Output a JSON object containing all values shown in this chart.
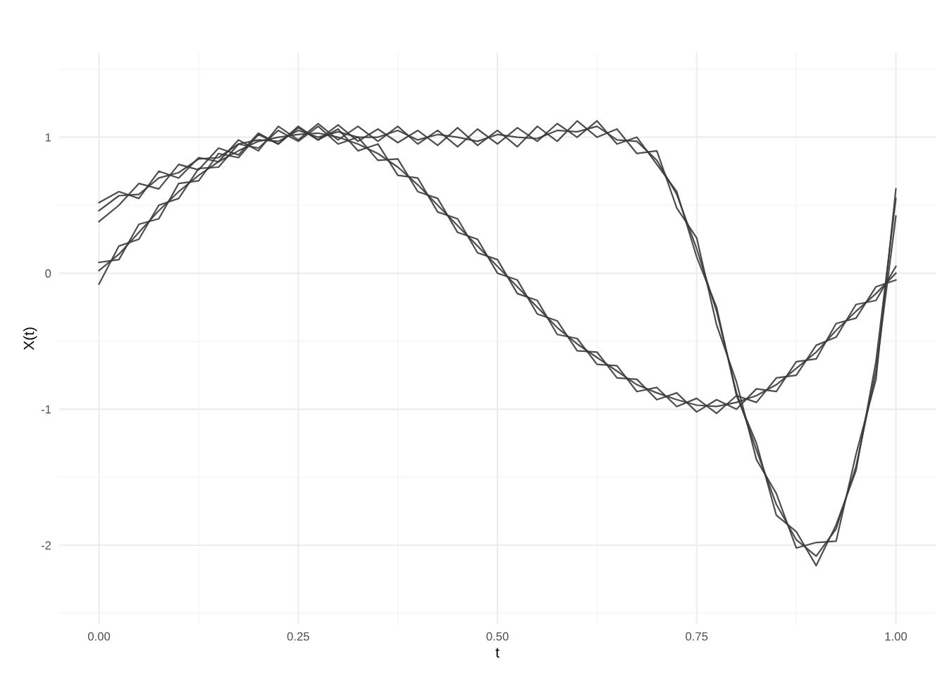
{
  "chart_data": {
    "type": "line",
    "xlabel": "t",
    "ylabel": "X(t)",
    "x": [
      0,
      0.025,
      0.05,
      0.075,
      0.1,
      0.125,
      0.15,
      0.175,
      0.2,
      0.225,
      0.25,
      0.275,
      0.3,
      0.325,
      0.35,
      0.375,
      0.4,
      0.425,
      0.45,
      0.475,
      0.5,
      0.525,
      0.55,
      0.575,
      0.6,
      0.625,
      0.65,
      0.675,
      0.7,
      0.725,
      0.75,
      0.775,
      0.8,
      0.825,
      0.85,
      0.875,
      0.9,
      0.925,
      0.95,
      0.975,
      1
    ],
    "series": [
      {
        "color": "#3a3a3a",
        "values": [
          0.52,
          0.6,
          0.55,
          0.75,
          0.7,
          0.85,
          0.82,
          0.98,
          0.9,
          1.08,
          0.98,
          1.1,
          0.98,
          1.08,
          0.97,
          1.08,
          0.95,
          1.05,
          0.93,
          1.06,
          0.95,
          1.07,
          0.97,
          1.1,
          1.0,
          1.12,
          0.95,
          1.0,
          0.8,
          0.6,
          0.12,
          -0.25,
          -0.9,
          -1.25,
          -1.78,
          -1.9,
          -2.15,
          -1.85,
          -1.45,
          -0.65,
          0.55
        ]
      },
      {
        "color": "#3a3a3a",
        "values": [
          0.38,
          0.5,
          0.66,
          0.62,
          0.8,
          0.76,
          0.92,
          0.87,
          1.03,
          0.95,
          1.07,
          0.98,
          1.09,
          0.97,
          1.06,
          0.96,
          1.05,
          0.94,
          1.07,
          0.94,
          1.05,
          0.93,
          1.08,
          0.97,
          1.12,
          1.0,
          1.06,
          0.88,
          0.9,
          0.48,
          0.26,
          -0.38,
          -0.8,
          -1.37,
          -1.62,
          -2.02,
          -1.98,
          -1.97,
          -1.33,
          -0.78,
          0.62
        ]
      },
      {
        "color": "#3a3a3a",
        "values": [
          0.46,
          0.57,
          0.58,
          0.7,
          0.74,
          0.84,
          0.85,
          0.95,
          0.98,
          0.97,
          1.05,
          1.0,
          1.04,
          1.0,
          1.0,
          1.05,
          0.98,
          1.02,
          1.0,
          0.97,
          1.02,
          1.0,
          0.99,
          1.05,
          1.04,
          1.08,
          0.98,
          0.97,
          0.83,
          0.58,
          0.18,
          -0.28,
          -0.88,
          -1.3,
          -1.7,
          -1.96,
          -2.08,
          -1.88,
          -1.42,
          -0.72,
          0.42
        ]
      },
      {
        "color": "#3a3a3a",
        "values": [
          0.08,
          0.1,
          0.36,
          0.4,
          0.66,
          0.68,
          0.88,
          0.85,
          1.02,
          0.95,
          1.08,
          0.98,
          1.06,
          0.9,
          0.95,
          0.72,
          0.7,
          0.45,
          0.4,
          0.15,
          0.1,
          -0.15,
          -0.2,
          -0.45,
          -0.48,
          -0.67,
          -0.68,
          -0.87,
          -0.84,
          -0.98,
          -0.92,
          -1.03,
          -0.9,
          -0.95,
          -0.77,
          -0.75,
          -0.53,
          -0.47,
          -0.23,
          -0.2,
          0.05
        ]
      },
      {
        "color": "#3a3a3a",
        "values": [
          -0.08,
          0.2,
          0.25,
          0.5,
          0.55,
          0.77,
          0.78,
          0.95,
          0.92,
          1.05,
          0.97,
          1.08,
          0.95,
          1.0,
          0.83,
          0.84,
          0.6,
          0.55,
          0.3,
          0.25,
          0.0,
          -0.05,
          -0.3,
          -0.35,
          -0.57,
          -0.58,
          -0.77,
          -0.78,
          -0.93,
          -0.88,
          -1.02,
          -0.93,
          -1.0,
          -0.85,
          -0.87,
          -0.65,
          -0.63,
          -0.37,
          -0.33,
          -0.1,
          -0.05
        ]
      },
      {
        "color": "#3a3a3a",
        "values": [
          0.02,
          0.14,
          0.3,
          0.46,
          0.6,
          0.72,
          0.82,
          0.9,
          0.97,
          1.0,
          1.02,
          1.03,
          1.0,
          0.95,
          0.88,
          0.78,
          0.65,
          0.5,
          0.35,
          0.2,
          0.05,
          -0.1,
          -0.25,
          -0.4,
          -0.52,
          -0.62,
          -0.72,
          -0.82,
          -0.88,
          -0.93,
          -0.97,
          -0.98,
          -0.95,
          -0.9,
          -0.82,
          -0.7,
          -0.58,
          -0.42,
          -0.28,
          -0.15,
          0.0
        ]
      }
    ],
    "xlim": [
      -0.05,
      1.05
    ],
    "ylim": [
      -2.58,
      1.62
    ],
    "xticks": [
      {
        "value": 0,
        "label": "0.00"
      },
      {
        "value": 0.25,
        "label": "0.25"
      },
      {
        "value": 0.5,
        "label": "0.50"
      },
      {
        "value": 0.75,
        "label": "0.75"
      },
      {
        "value": 1,
        "label": "1.00"
      }
    ],
    "yticks": [
      -2,
      -1,
      0,
      1
    ],
    "grid": true,
    "legend": false,
    "marker": "none",
    "line_style": "solid"
  }
}
